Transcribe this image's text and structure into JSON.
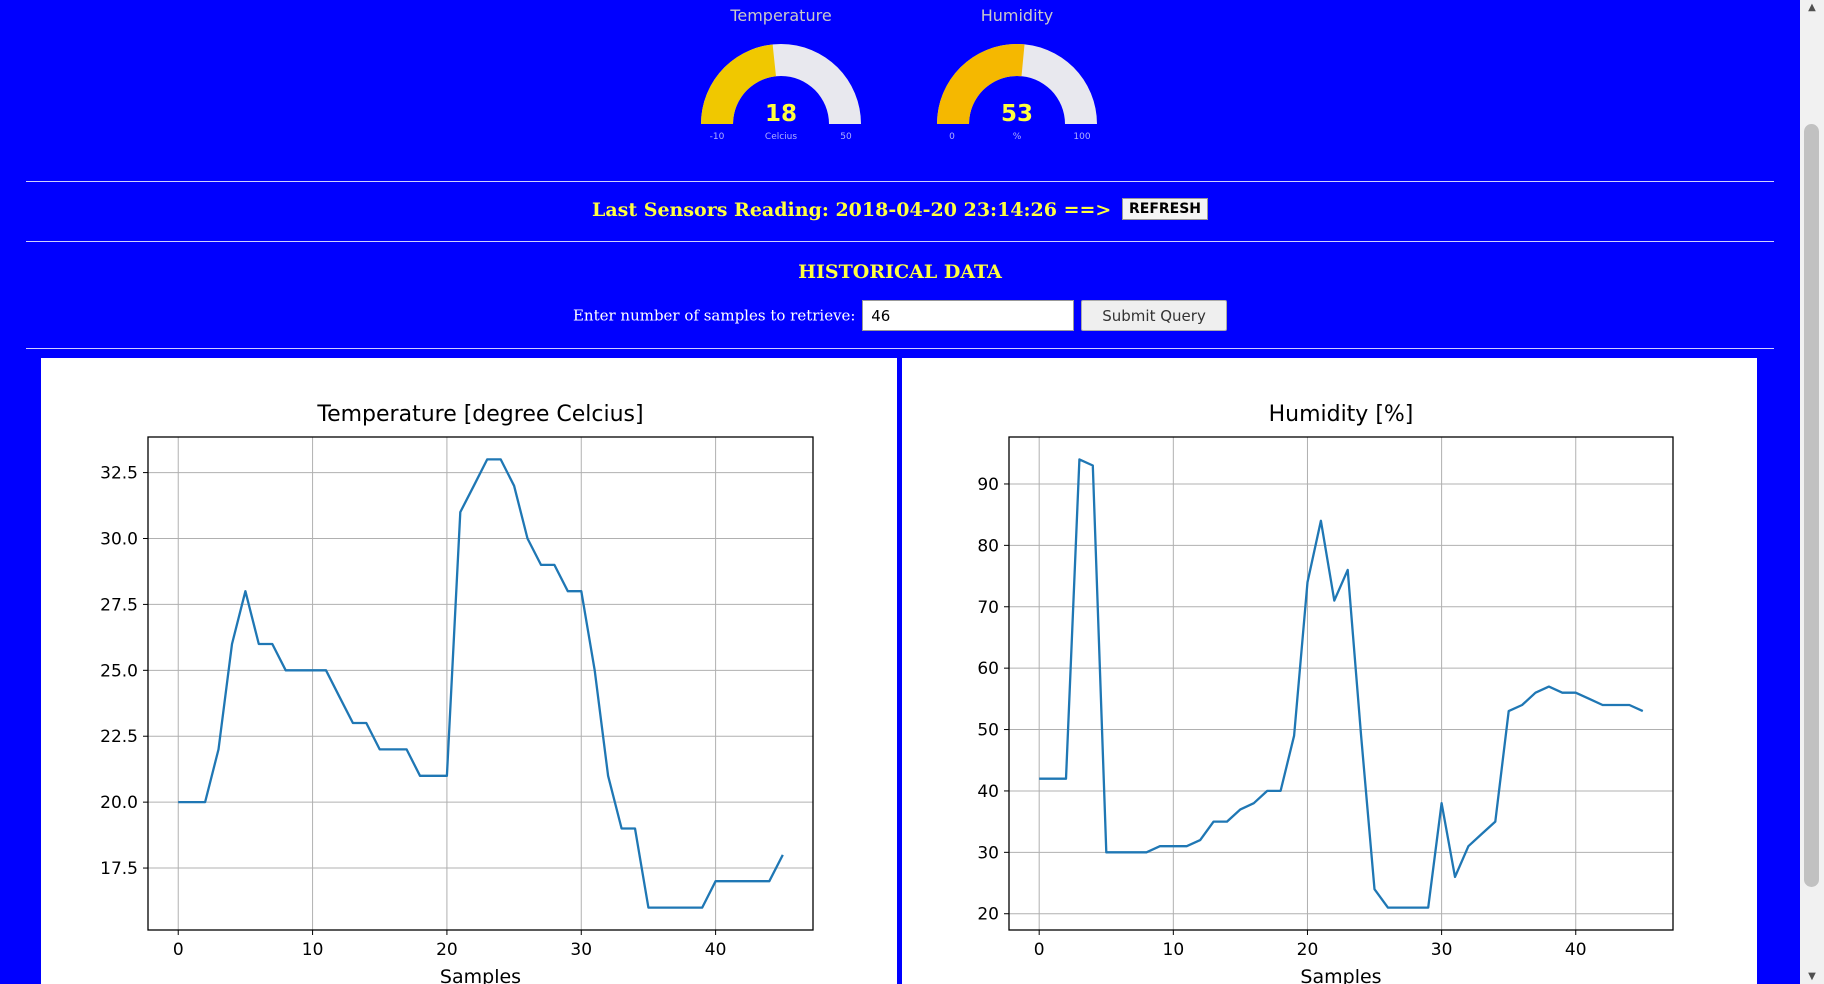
{
  "gauges": {
    "temperature": {
      "title": "Temperature",
      "value": "18",
      "unit": "Celcius",
      "min": "-10",
      "max": "50",
      "value_num": 18,
      "min_num": -10,
      "max_num": 50,
      "color": "#f0c800"
    },
    "humidity": {
      "title": "Humidity",
      "value": "53",
      "unit": "%",
      "min": "0",
      "max": "100",
      "value_num": 53,
      "min_num": 0,
      "max_num": 100,
      "color": "#f5b800"
    }
  },
  "last_reading": {
    "label": "Last Sensors Reading: 2018-04-20 23:14:26 ==>",
    "refresh_label": "REFRESH"
  },
  "historical": {
    "title": "HISTORICAL DATA",
    "prompt": "Enter number of samples to retrieve:",
    "input_value": "46",
    "submit_label": "Submit Query"
  },
  "chart_data": [
    {
      "type": "line",
      "title": "Temperature [degree Celcius]",
      "xlabel": "Samples",
      "ylabel": "",
      "xlim": [
        -2.25,
        47.25
      ],
      "ylim": [
        15.15,
        33.85
      ],
      "xticks": [
        0,
        10,
        20,
        30,
        40
      ],
      "yticks": [
        17.5,
        20.0,
        22.5,
        25.0,
        27.5,
        30.0,
        32.5
      ],
      "ytick_labels": [
        "17.5",
        "20.0",
        "22.5",
        "25.0",
        "27.5",
        "30.0",
        "32.5"
      ],
      "grid": true,
      "color": "#1f77b4",
      "x": [
        0,
        1,
        2,
        3,
        4,
        5,
        6,
        7,
        8,
        9,
        10,
        11,
        12,
        13,
        14,
        15,
        16,
        17,
        18,
        19,
        20,
        21,
        22,
        23,
        24,
        25,
        26,
        27,
        28,
        29,
        30,
        31,
        32,
        33,
        34,
        35,
        36,
        37,
        38,
        39,
        40,
        41,
        42,
        43,
        44,
        45
      ],
      "y": [
        20,
        20,
        20,
        22,
        26,
        28,
        26,
        26,
        25,
        25,
        25,
        25,
        24,
        23,
        23,
        22,
        22,
        22,
        21,
        21,
        21,
        31,
        32,
        33,
        33,
        32,
        30,
        29,
        29,
        28,
        28,
        25,
        21,
        19,
        19,
        16,
        16,
        16,
        16,
        16,
        17,
        17,
        17,
        17,
        17,
        18
      ]
    },
    {
      "type": "line",
      "title": "Humidity [%]",
      "xlabel": "Samples",
      "ylabel": "",
      "xlim": [
        -2.25,
        47.25
      ],
      "ylim": [
        17.35,
        97.65
      ],
      "xticks": [
        0,
        10,
        20,
        30,
        40
      ],
      "yticks": [
        20,
        30,
        40,
        50,
        60,
        70,
        80,
        90
      ],
      "ytick_labels": [
        "20",
        "30",
        "40",
        "50",
        "60",
        "70",
        "80",
        "90"
      ],
      "grid": true,
      "color": "#1f77b4",
      "x": [
        0,
        1,
        2,
        3,
        4,
        5,
        6,
        7,
        8,
        9,
        10,
        11,
        12,
        13,
        14,
        15,
        16,
        17,
        18,
        19,
        20,
        21,
        22,
        23,
        24,
        25,
        26,
        27,
        28,
        29,
        30,
        31,
        32,
        33,
        34,
        35,
        36,
        37,
        38,
        39,
        40,
        41,
        42,
        43,
        44,
        45
      ],
      "y": [
        42,
        42,
        42,
        94,
        93,
        30,
        30,
        30,
        30,
        31,
        31,
        31,
        32,
        35,
        35,
        37,
        38,
        40,
        40,
        49,
        74,
        84,
        71,
        76,
        49,
        24,
        21,
        21,
        21,
        21,
        38,
        26,
        31,
        33,
        35,
        53,
        54,
        56,
        57,
        56,
        56,
        55,
        54,
        54,
        54,
        53
      ]
    }
  ]
}
